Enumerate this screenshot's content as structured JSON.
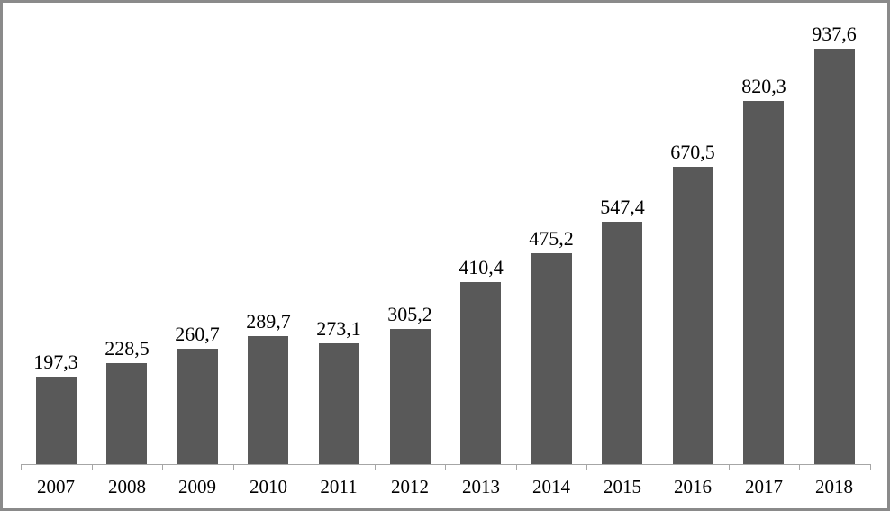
{
  "chart_data": {
    "type": "bar",
    "title": "",
    "xlabel": "",
    "ylabel": "",
    "categories": [
      "2007",
      "2008",
      "2009",
      "2010",
      "2011",
      "2012",
      "2013",
      "2014",
      "2015",
      "2016",
      "2017",
      "2018"
    ],
    "values": [
      197.3,
      228.5,
      260.7,
      289.7,
      273.1,
      305.2,
      410.4,
      475.2,
      547.4,
      670.5,
      820.3,
      937.6
    ],
    "value_labels": [
      "197,3",
      "228,5",
      "260,7",
      "289,7",
      "273,1",
      "305,2",
      "410,4",
      "475,2",
      "547,4",
      "670,5",
      "820,3",
      "937,6"
    ],
    "decimal_separator": ",",
    "ylim": [
      0,
      1000
    ],
    "grid": false,
    "legend": "none",
    "y_axis_visible": false,
    "x_axis_tick_position": "category-boundaries",
    "colors": {
      "bar": "#595959",
      "axis": "#a6a6a6",
      "text": "#000000",
      "background": "#ffffff",
      "frame_border": "#8a8a8a"
    }
  }
}
